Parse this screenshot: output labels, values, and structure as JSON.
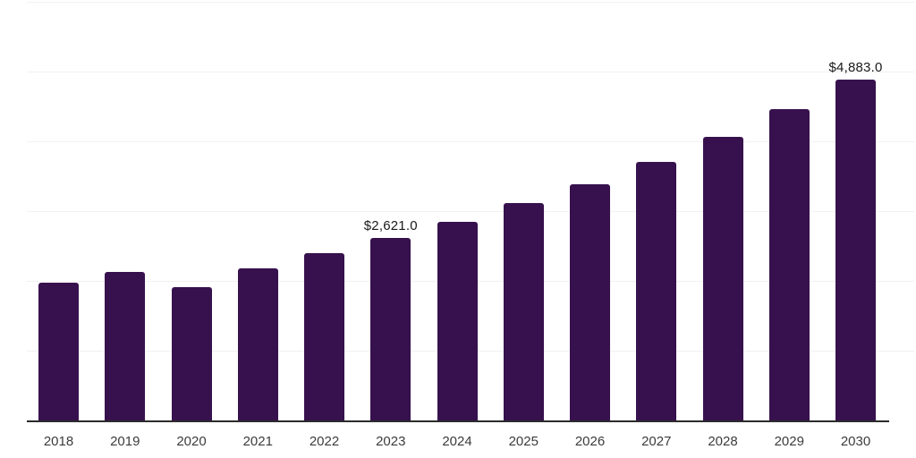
{
  "chart_data": {
    "type": "bar",
    "title": "",
    "xlabel": "",
    "ylabel": "",
    "categories": [
      "2018",
      "2019",
      "2020",
      "2021",
      "2022",
      "2023",
      "2024",
      "2025",
      "2026",
      "2027",
      "2028",
      "2029",
      "2030"
    ],
    "values": [
      1970,
      2125,
      1905,
      2180,
      2395,
      2621.0,
      2845,
      3115,
      3390,
      3710,
      4070,
      4460,
      4883.0
    ],
    "data_labels": {
      "2023": "$2,621.0",
      "2030": "$4,883.0"
    },
    "ylim": [
      0,
      6000
    ],
    "gridline_step": 1000,
    "grid": true,
    "legend": "none",
    "bar_color": "#37114D",
    "gridline_color": "#F1F1F4",
    "axis_line_color": "#2B2B2B",
    "tick_label_color": "#3C3C3C",
    "data_label_color": "#1A1A1A",
    "background_color": "#FFFFFF"
  }
}
